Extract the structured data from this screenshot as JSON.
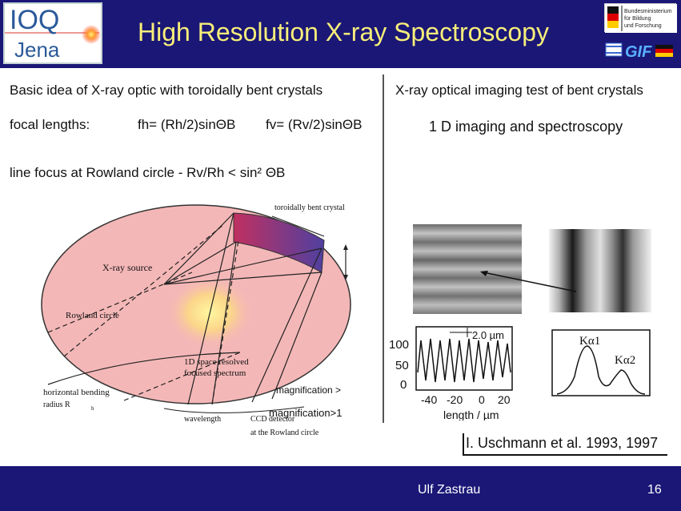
{
  "header": {
    "title": "High Resolution X-ray Spectroscopy",
    "logo_ioq_top": "IOQ",
    "logo_ioq_bottom": "Jena",
    "bmbf_text": [
      "Bundesministerium",
      "für Bildung",
      "und Forschung"
    ],
    "gif_text": "GIF"
  },
  "left_panel": {
    "heading": "Basic idea of X-ray optic with toroidally bent crystals",
    "focal_label": "focal lengths:",
    "fh_eq": "fh= (Rh/2)sinΘB",
    "fv_eq": "fv= (Rv/2)sinΘB",
    "line_focus": "line focus at Rowland circle - Rv/Rh < sin² ΘB",
    "diagram_labels": {
      "crystal": "toroidally bent crystal",
      "source": "X-ray source",
      "rowland": "Rowland circle",
      "spectrum_1": "1D space resolved",
      "spectrum_2": "focused spectrum",
      "bending_1": "horizontal  bending",
      "bending_2": "radius R",
      "bending_sub": "h",
      "wavelength": "wavelength",
      "ccd_1": "CCD detector",
      "ccd_2": "at the Rowland circle",
      "mag_gt": "magnification >",
      "mag_gt1": "magnification>1"
    }
  },
  "right_panel": {
    "heading": "X-ray optical imaging test of bent crystals",
    "subheading": "1 D imaging and spectroscopy",
    "profile_plot": {
      "scale_label": "2.0 µm",
      "y_ticks": [
        "100",
        "50",
        "0"
      ],
      "x_ticks": [
        "-40",
        "-20",
        "0",
        "20"
      ],
      "xlabel": "length / µm"
    },
    "spectrum_plot": {
      "peak1": "Kα1",
      "peak2": "Kα2"
    },
    "reference": "I. Uschmann et al. 1993, 1997"
  },
  "footer": {
    "author": "Ulf Zastrau",
    "page": "16"
  },
  "colors": {
    "header_bg": "#1a1777",
    "title": "#f7ee7a",
    "ellipse_fill": "#f4b7b7"
  }
}
